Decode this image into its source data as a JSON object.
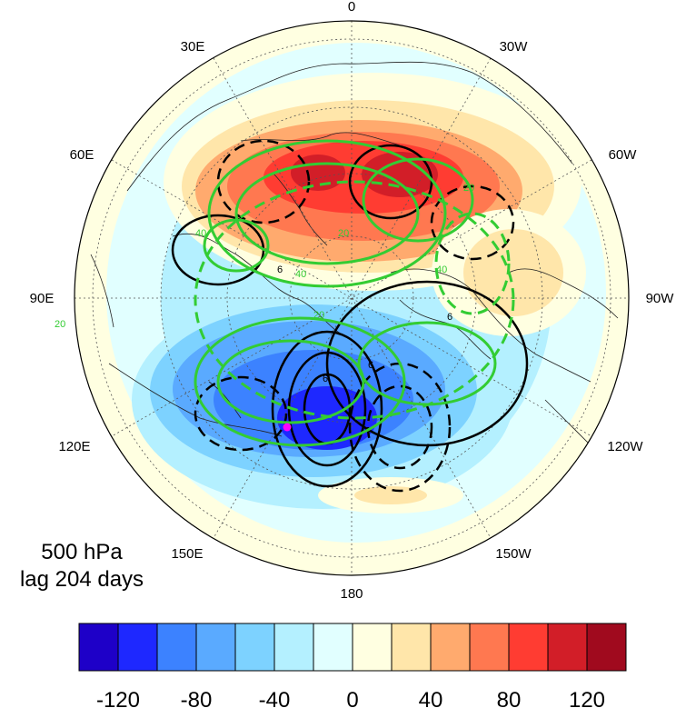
{
  "map": {
    "projection": "north-polar-stereographic",
    "longitude_labels": [
      "0",
      "30W",
      "60W",
      "90W",
      "120W",
      "150W",
      "180",
      "150E",
      "120E",
      "90E",
      "60E",
      "30E"
    ],
    "level_text": "500 hPa",
    "lag_text": "lag 204 days",
    "marker_color": "#ff00ff",
    "green_contour_color": "#33cc33",
    "black_contour_color": "#000000",
    "green_contour_labels": [
      "20",
      "40",
      "20",
      "40",
      "20",
      "40",
      "20"
    ],
    "black_contour_labels": [
      "6",
      "6",
      "6",
      "6"
    ]
  },
  "colorbar": {
    "colors": [
      "#1e00c8",
      "#1e28ff",
      "#3c82ff",
      "#5aaaff",
      "#7dd2ff",
      "#b4f0ff",
      "#e1ffff",
      "#ffffe1",
      "#ffe6aa",
      "#ffaa6e",
      "#ff7850",
      "#ff3c32",
      "#d21e28",
      "#a00a1e"
    ],
    "tick_labels": [
      "-120",
      "-80",
      "-40",
      "0",
      "40",
      "80",
      "120"
    ]
  }
}
